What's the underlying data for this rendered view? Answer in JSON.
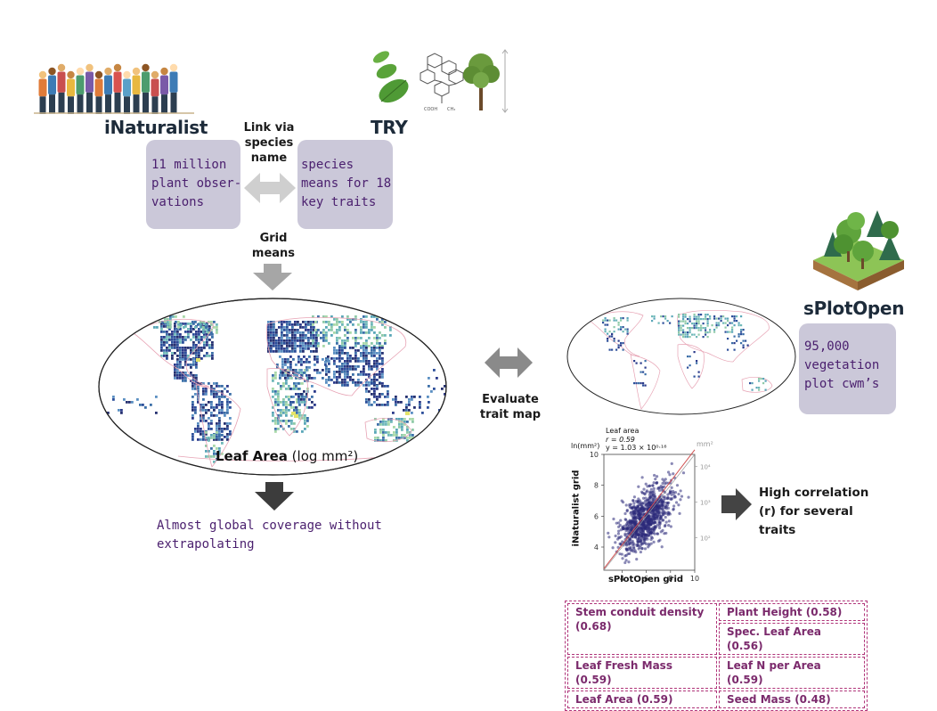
{
  "inaturalist": {
    "title": "iNaturalist",
    "box_text": "11 million\nplant obser-\nvations"
  },
  "try": {
    "title": "TRY",
    "box_text": "species\nmeans for 18\nkey traits"
  },
  "link_label": "Link via\nspecies\nname",
  "grid_label": "Grid\nmeans",
  "map_caption": {
    "bold": "Leaf Area",
    "rest": " (log mm²)"
  },
  "coverage_text": "Almost global coverage without\nextrapolating",
  "evaluate_label": "Evaluate\ntrait map",
  "splot": {
    "title": "sPlotOpen",
    "box_text": "95,000\nvegetation\nplot cwm’s"
  },
  "scatter": {
    "header_title": "Leaf area",
    "header_r": "r = 0.59",
    "header_eq": "y = 1.03 × 10⁰·¹⁶",
    "y_unit_left": "ln(mm²)",
    "y_unit_right": "mm²",
    "ylabel": "iNaturalist grid",
    "xlabel": "sPlotOpen grid"
  },
  "chart_data": {
    "type": "scatter",
    "title": "Leaf area",
    "xlabel": "sPlotOpen grid",
    "ylabel": "iNaturalist grid",
    "xlim": [
      2.5,
      10
    ],
    "ylim": [
      2.5,
      10
    ],
    "x_ticks": [
      "4",
      "6",
      "8",
      "10"
    ],
    "y_ticks": [
      "4",
      "6",
      "8",
      "10"
    ],
    "right_ticks": [
      "10²",
      "10³",
      "10⁴"
    ],
    "r": 0.59,
    "fit_line": [
      [
        2.5,
        2.6
      ],
      [
        10,
        10.3
      ]
    ],
    "identity_line": [
      [
        2.5,
        2.5
      ],
      [
        10,
        10
      ]
    ],
    "point_color": "#2c2a7a",
    "fit_color": "#d05050"
  },
  "correlation_text": "High correlation\n(r) for several\ntraits",
  "traits_table": {
    "rows": [
      [
        "Stem conduit density (0.68)",
        "Plant Height (0.58)",
        "Spec. Leaf Area (0.56)"
      ],
      [
        "Leaf Fresh Mass (0.59)",
        "Leaf N per Area (0.59)"
      ],
      [
        "Leaf Area (0.59)",
        "Seed Mass (0.48)"
      ]
    ]
  },
  "colors": {
    "box_fill": "#cbc8d9",
    "box_text": "#4a1f6e",
    "arrow_light": "#c8c8c8",
    "arrow_mid": "#a0a0a0",
    "arrow_dark": "#444444",
    "table_border": "#b0357a",
    "table_text": "#7b2a6c",
    "map_blue": "#2b3a8a",
    "map_teal": "#6fb8b8",
    "map_coast": "#e7a3b4"
  }
}
